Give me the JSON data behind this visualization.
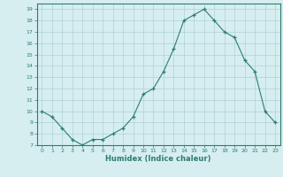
{
  "x": [
    0,
    1,
    2,
    3,
    4,
    5,
    6,
    7,
    8,
    9,
    10,
    11,
    12,
    13,
    14,
    15,
    16,
    17,
    18,
    19,
    20,
    21,
    22,
    23
  ],
  "y": [
    10,
    9.5,
    8.5,
    7.5,
    7,
    7.5,
    7.5,
    8,
    8.5,
    9.5,
    11.5,
    12,
    13.5,
    15.5,
    18,
    18.5,
    19,
    18,
    17,
    16.5,
    14.5,
    13.5,
    10,
    9
  ],
  "xlabel": "Humidex (Indice chaleur)",
  "ylabel": "",
  "xlim": [
    -0.5,
    23.5
  ],
  "ylim": [
    7,
    19.5
  ],
  "yticks": [
    7,
    8,
    9,
    10,
    11,
    12,
    13,
    14,
    15,
    16,
    17,
    18,
    19
  ],
  "xticks": [
    0,
    1,
    2,
    3,
    4,
    5,
    6,
    7,
    8,
    9,
    10,
    11,
    12,
    13,
    14,
    15,
    16,
    17,
    18,
    19,
    20,
    21,
    22,
    23
  ],
  "line_color": "#2e7d6e",
  "marker": "+",
  "bg_color": "#d6eef0",
  "grid_color": "#b0d0d8",
  "label_color": "#2e7d6e",
  "tick_color": "#2e7d6e",
  "spine_color": "#2e7d6e"
}
